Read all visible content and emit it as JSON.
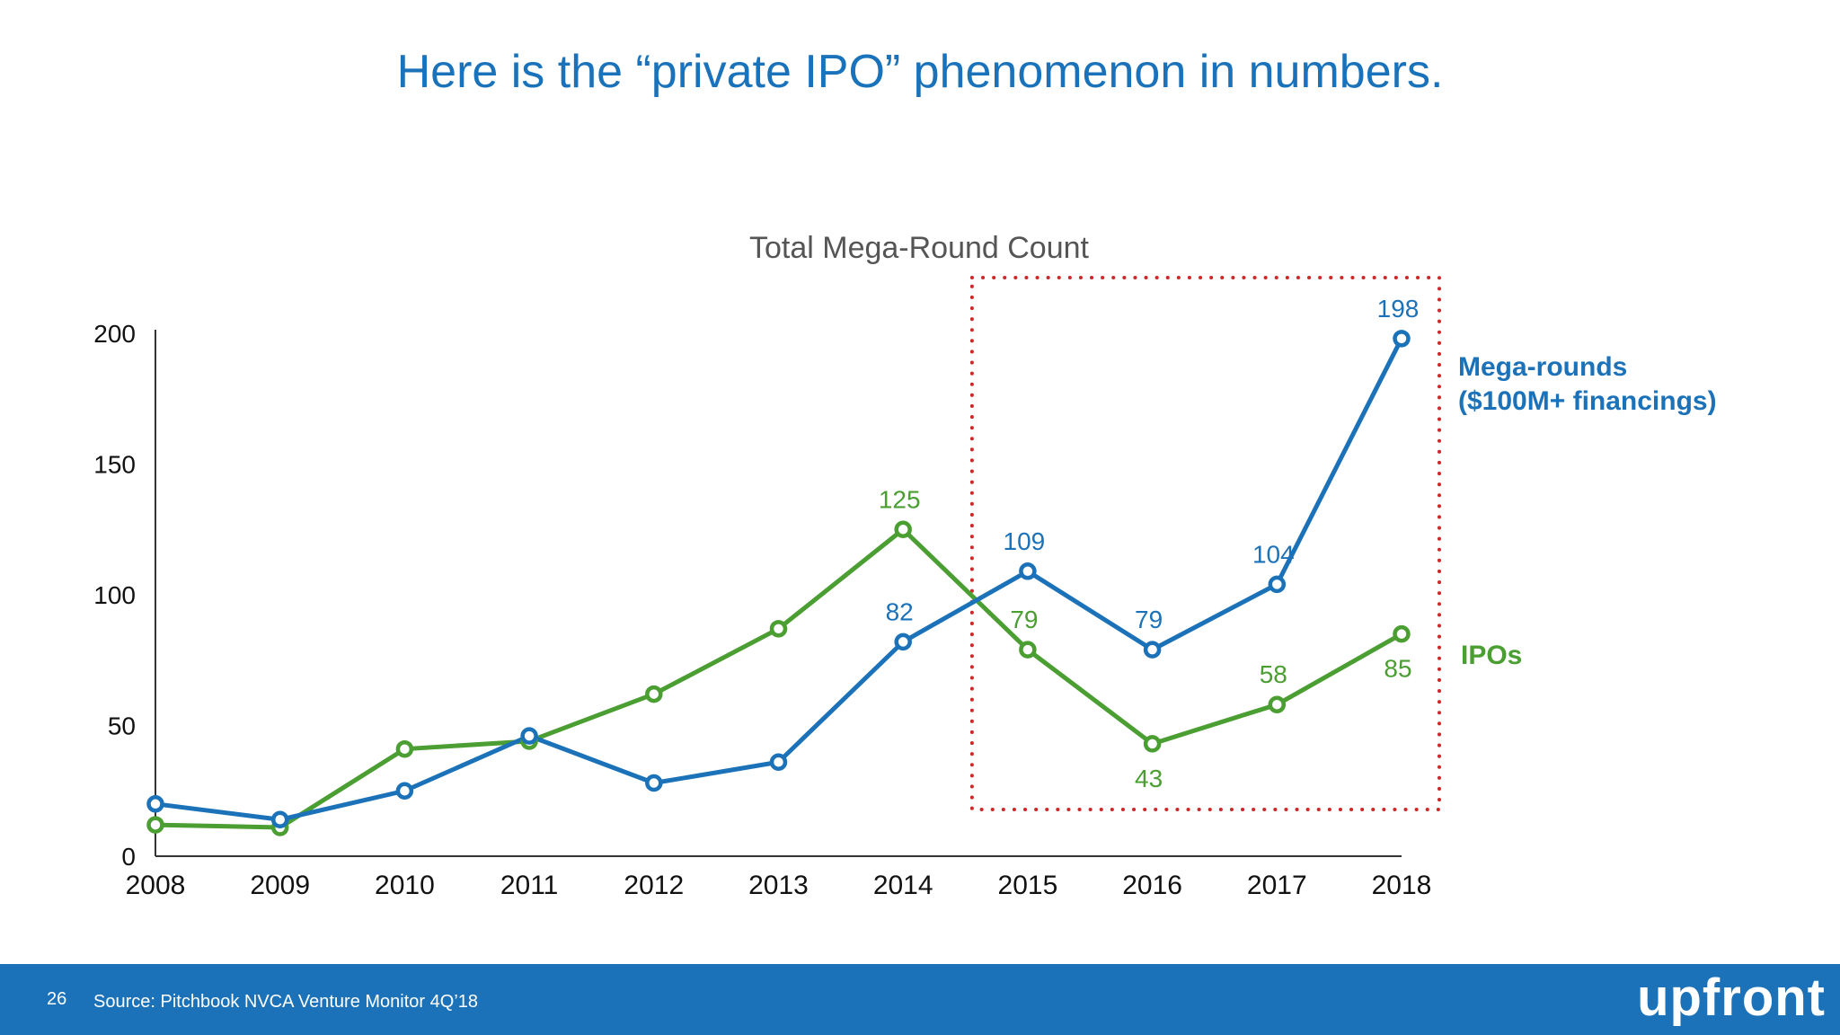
{
  "slide": {
    "title": "Here is the “private IPO” phenomenon in numbers.",
    "page_number": "26",
    "source": "Source: Pitchbook NVCA Venture Monitor 4Q’18",
    "brand": "upfront"
  },
  "colors": {
    "title": "#1a73ba",
    "mega_rounds": "#1c72b8",
    "ipos": "#4a9e32",
    "highlight_box": "#cc2a2a",
    "footer": "#1c72b8"
  },
  "chart_data": {
    "type": "line",
    "title": "Total Mega-Round Count",
    "xlabel": "",
    "ylabel": "",
    "x": [
      "2008",
      "2009",
      "2010",
      "2011",
      "2012",
      "2013",
      "2014",
      "2015",
      "2016",
      "2017",
      "2018"
    ],
    "ylim": [
      0,
      200
    ],
    "yticks": [
      "0",
      "50",
      "100",
      "150",
      "200"
    ],
    "grid": false,
    "series": [
      {
        "name": "Mega-rounds ($100M+ financings)",
        "name_lines": [
          "Mega-rounds",
          "($100M+ financings)"
        ],
        "values": [
          20,
          14,
          25,
          46,
          28,
          36,
          82,
          109,
          79,
          104,
          198
        ],
        "labels": {
          "6": "82",
          "7": "109",
          "8": "79",
          "9": "104",
          "10": "198"
        }
      },
      {
        "name": "IPOs",
        "name_lines": [
          "IPOs"
        ],
        "values": [
          12,
          11,
          41,
          44,
          62,
          87,
          125,
          79,
          43,
          58,
          85
        ],
        "labels": {
          "6": "125",
          "7": "79",
          "8": "43",
          "9": "58",
          "10": "85"
        }
      }
    ],
    "highlight": {
      "from": "2015",
      "to": "2018",
      "style": "dotted"
    }
  }
}
